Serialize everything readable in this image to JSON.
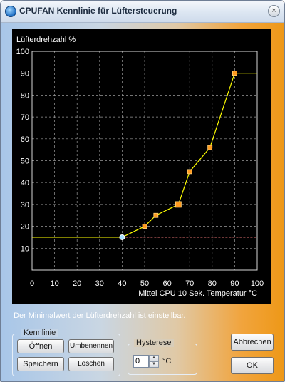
{
  "window": {
    "title": "CPUFAN Kennlinie für Lüftersteuerung",
    "close_glyph": "×"
  },
  "chart_data": {
    "type": "line",
    "ylabel": "Lüfterdrehzahl %",
    "xlabel": "Mittel CPU 10 Sek. Temperatur °C",
    "xlim": [
      0,
      100
    ],
    "ylim": [
      0,
      100
    ],
    "x_ticks": [
      "0",
      "10",
      "20",
      "30",
      "40",
      "50",
      "60",
      "70",
      "80",
      "90",
      "100"
    ],
    "y_ticks": [
      "10",
      "20",
      "30",
      "40",
      "50",
      "60",
      "70",
      "80",
      "90",
      "100"
    ],
    "grid": true,
    "min_level": 15,
    "series": [
      {
        "points": [
          [
            0,
            15
          ],
          [
            40,
            15
          ],
          [
            50,
            20
          ],
          [
            55,
            25
          ],
          [
            65,
            30
          ],
          [
            70,
            45
          ],
          [
            79,
            56
          ],
          [
            90,
            90
          ],
          [
            100,
            90
          ]
        ],
        "control_points": [
          [
            40,
            15
          ],
          [
            50,
            20
          ],
          [
            55,
            25
          ],
          [
            65,
            30
          ],
          [
            70,
            45
          ],
          [
            79,
            56
          ],
          [
            90,
            90
          ]
        ]
      }
    ],
    "colors": {
      "background": "#000000",
      "line": "#ffff00",
      "grid": "#9a9a9a",
      "min_line": "#e07070",
      "point": "#ff9a1f",
      "min_point": "#a8e0ff"
    }
  },
  "info_text": "Der Minimalwert der Lüfterdrehzahl ist einstellbar.",
  "kennlinie_group": {
    "label": "Kennlinie",
    "open_button": "Öffnen",
    "rename_button": "Umbenennen",
    "save_button": "Speichern",
    "delete_button": "Löschen"
  },
  "hysterese_group": {
    "label": "Hysterese",
    "value": "0",
    "unit": "°C"
  },
  "cancel_button": "Abbrechen",
  "ok_button": "OK"
}
